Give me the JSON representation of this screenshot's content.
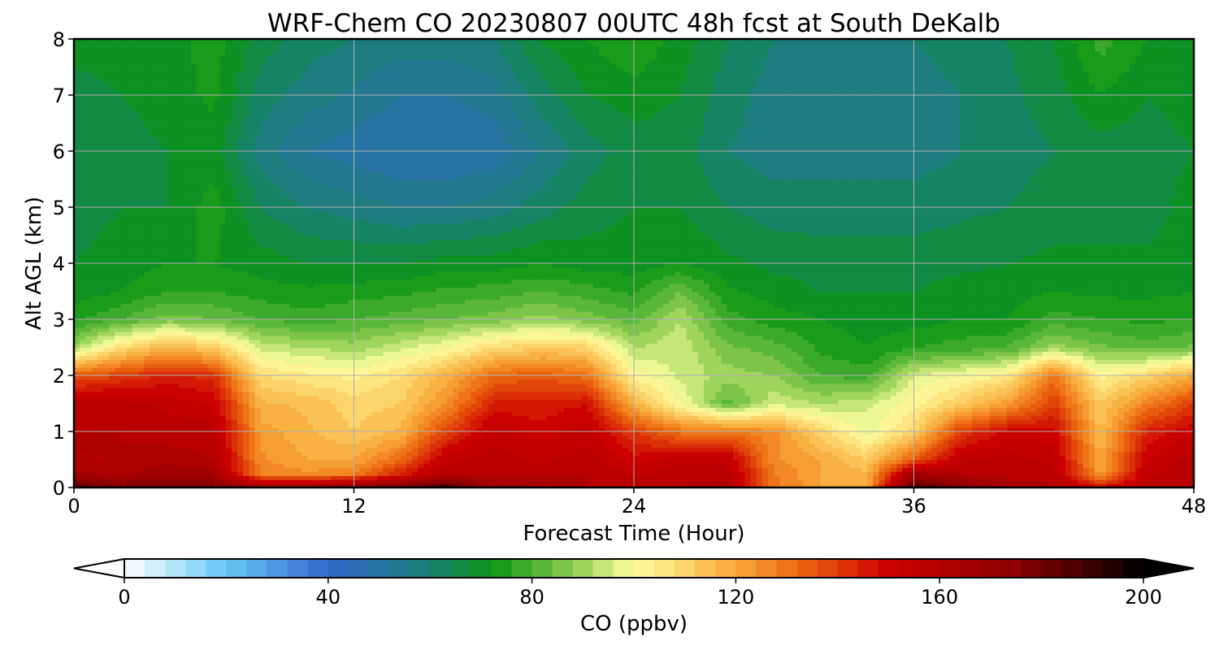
{
  "chart_data": {
    "type": "heatmap",
    "subtype": "filled-contour time-height cross section",
    "title": "WRF-Chem CO  20230807 00UTC 48h fcst at South DeKalb",
    "xlabel": "Forecast Time (Hour)",
    "ylabel": "Alt AGL (km)",
    "xlim": [
      0,
      48
    ],
    "ylim": [
      0,
      8
    ],
    "xticks": [
      "0",
      "12",
      "24",
      "36",
      "48"
    ],
    "yticks": [
      "0",
      "1",
      "2",
      "3",
      "4",
      "5",
      "6",
      "7",
      "8"
    ],
    "grid": true,
    "colorbar": {
      "label": "CO  (ppbv)",
      "orientation": "horizontal",
      "placement": "bottom",
      "min": 0,
      "max": 200,
      "extend": "both",
      "ticks": [
        "0",
        "40",
        "80",
        "120",
        "160",
        "200"
      ],
      "stops": [
        {
          "v": 0,
          "color": "#ffffff"
        },
        {
          "v": 20,
          "color": "#66c8f5"
        },
        {
          "v": 40,
          "color": "#3366cc"
        },
        {
          "v": 60,
          "color": "#1a7f76"
        },
        {
          "v": 72,
          "color": "#0a9412"
        },
        {
          "v": 88,
          "color": "#8ccc50"
        },
        {
          "v": 100,
          "color": "#ffffa0"
        },
        {
          "v": 120,
          "color": "#f8a838"
        },
        {
          "v": 132,
          "color": "#ec6a10"
        },
        {
          "v": 150,
          "color": "#cc0000"
        },
        {
          "v": 175,
          "color": "#8c0000"
        },
        {
          "v": 200,
          "color": "#000000"
        }
      ]
    },
    "x": [
      0,
      2,
      4,
      6,
      8,
      10,
      12,
      14,
      16,
      18,
      20,
      22,
      24,
      26,
      28,
      30,
      32,
      34,
      36,
      38,
      40,
      42,
      44,
      46,
      48
    ],
    "y": [
      0,
      0.25,
      0.5,
      1,
      1.5,
      2,
      2.5,
      3,
      3.5,
      4,
      5,
      6,
      7,
      8
    ],
    "z": [
      [
        185,
        178,
        182,
        178,
        170,
        170,
        176,
        180,
        190,
        165,
        165,
        160,
        158,
        160,
        162,
        130,
        120,
        120,
        190,
        175,
        165,
        160,
        150,
        158,
        160
      ],
      [
        165,
        162,
        168,
        165,
        128,
        125,
        128,
        145,
        158,
        160,
        158,
        160,
        155,
        158,
        158,
        128,
        120,
        117,
        165,
        160,
        158,
        158,
        122,
        155,
        160
      ],
      [
        160,
        160,
        162,
        160,
        125,
        120,
        120,
        132,
        155,
        158,
        155,
        158,
        150,
        155,
        155,
        125,
        120,
        112,
        135,
        155,
        158,
        155,
        120,
        152,
        158
      ],
      [
        160,
        160,
        158,
        158,
        122,
        117,
        112,
        117,
        140,
        155,
        150,
        155,
        140,
        130,
        130,
        125,
        110,
        98,
        110,
        140,
        150,
        150,
        115,
        145,
        152
      ],
      [
        158,
        158,
        155,
        152,
        117,
        115,
        110,
        112,
        125,
        145,
        145,
        148,
        118,
        100,
        82,
        95,
        92,
        95,
        102,
        112,
        122,
        140,
        112,
        128,
        140
      ],
      [
        135,
        140,
        145,
        142,
        108,
        105,
        103,
        108,
        118,
        132,
        135,
        130,
        102,
        95,
        90,
        88,
        80,
        78,
        96,
        100,
        105,
        130,
        102,
        110,
        120
      ],
      [
        90,
        108,
        118,
        112,
        95,
        92,
        90,
        95,
        100,
        108,
        112,
        110,
        92,
        95,
        85,
        82,
        75,
        72,
        76,
        78,
        80,
        90,
        85,
        82,
        85
      ],
      [
        75,
        80,
        86,
        84,
        80,
        78,
        80,
        82,
        84,
        86,
        90,
        86,
        82,
        92,
        78,
        74,
        72,
        70,
        70,
        72,
        72,
        78,
        76,
        75,
        76
      ],
      [
        70,
        72,
        76,
        76,
        74,
        73,
        74,
        75,
        77,
        78,
        80,
        78,
        75,
        84,
        73,
        70,
        68,
        68,
        68,
        70,
        70,
        72,
        71,
        71,
        72
      ],
      [
        68,
        70,
        72,
        72,
        70,
        68,
        68,
        68,
        70,
        70,
        72,
        70,
        70,
        72,
        69,
        67,
        66,
        66,
        66,
        67,
        68,
        69,
        69,
        69,
        70
      ],
      [
        66,
        68,
        68,
        74,
        64,
        60,
        58,
        56,
        56,
        58,
        62,
        66,
        68,
        68,
        64,
        62,
        62,
        62,
        62,
        63,
        64,
        66,
        66,
        66,
        70
      ],
      [
        64,
        66,
        68,
        70,
        58,
        52,
        50,
        48,
        48,
        49,
        56,
        62,
        66,
        66,
        60,
        58,
        58,
        58,
        58,
        60,
        62,
        64,
        66,
        66,
        68
      ],
      [
        66,
        68,
        70,
        73,
        62,
        58,
        55,
        52,
        52,
        54,
        62,
        68,
        70,
        68,
        62,
        58,
        57,
        57,
        58,
        60,
        63,
        66,
        72,
        68,
        70
      ],
      [
        70,
        70,
        70,
        74,
        66,
        62,
        60,
        58,
        58,
        60,
        68,
        72,
        76,
        70,
        64,
        60,
        58,
        58,
        60,
        62,
        64,
        68,
        78,
        72,
        72
      ]
    ]
  }
}
